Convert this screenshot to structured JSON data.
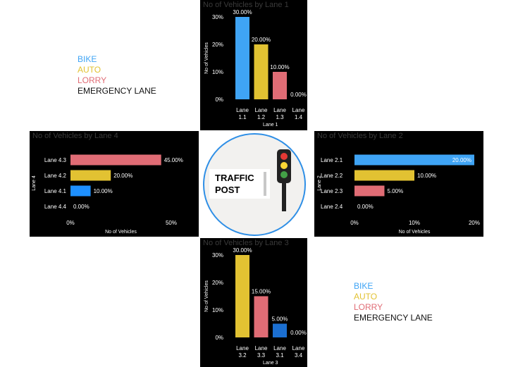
{
  "colors": {
    "bike": "#3fa4f5",
    "auto": "#e2c232",
    "lorry": "#e06c75",
    "lane31": "#1b6fd1",
    "lane41": "#1e90ff",
    "panel_bg": "#000000",
    "accent": "#2f8fe6"
  },
  "legend_top": {
    "items": [
      "BIKE",
      "AUTO",
      "LORRY",
      "EMERGENCY LANE"
    ]
  },
  "legend_bottom": {
    "items": [
      "BIKE",
      "AUTO",
      "LORRY",
      "EMERGENCY LANE"
    ]
  },
  "traffic_post": {
    "line1": "TRAFFIC",
    "line2": "POST"
  },
  "chart_data": [
    {
      "id": "lane1",
      "type": "bar",
      "title": "No of Vehicles by Lane 1",
      "categories": [
        "Lane 1.1",
        "Lane 1.2",
        "Lane 1.3",
        "Lane 1.4"
      ],
      "values": [
        30,
        20,
        10,
        0
      ],
      "labels": [
        "30.00%",
        "20.00%",
        "10.00%",
        "0.00%"
      ],
      "colors": [
        "#3fa4f5",
        "#e2c232",
        "#e06c75",
        "#000000"
      ],
      "xlabel": "Lane 1",
      "ylabel": "No of Vehicles",
      "ylim": [
        0,
        30
      ],
      "ticks": [
        "0%",
        "10%",
        "20%",
        "30%"
      ]
    },
    {
      "id": "lane2",
      "type": "bar",
      "orientation": "horizontal",
      "title": "No of Vehicles by Lane 2",
      "categories": [
        "Lane 2.1",
        "Lane 2.2",
        "Lane 2.3",
        "Lane 2.4"
      ],
      "values": [
        20,
        10,
        5,
        0
      ],
      "labels": [
        "20.00%",
        "10.00%",
        "5.00%",
        "0.00%"
      ],
      "colors": [
        "#3fa4f5",
        "#e2c232",
        "#e06c75",
        "#000000"
      ],
      "xlabel": "No of Vehicles",
      "ylabel": "Lane 2",
      "xlim": [
        0,
        20
      ],
      "ticks": [
        "0%",
        "10%",
        "20%"
      ]
    },
    {
      "id": "lane3",
      "type": "bar",
      "title": "No of Vehicles by Lane 3",
      "categories": [
        "Lane 3.2",
        "Lane 3.3",
        "Lane 3.1",
        "Lane 3.4"
      ],
      "values": [
        30,
        15,
        5,
        0
      ],
      "labels": [
        "30.00%",
        "15.00%",
        "5.00%",
        "0.00%"
      ],
      "colors": [
        "#e2c232",
        "#e06c75",
        "#1b6fd1",
        "#000000"
      ],
      "xlabel": "Lane 3",
      "ylabel": "No of Vehicles",
      "ylim": [
        0,
        30
      ],
      "ticks": [
        "0%",
        "10%",
        "20%",
        "30%"
      ]
    },
    {
      "id": "lane4",
      "type": "bar",
      "orientation": "horizontal",
      "title": "No of Vehicles by Lane 4",
      "categories": [
        "Lane 4.3",
        "Lane 4.2",
        "Lane 4.1",
        "Lane 4.4"
      ],
      "values": [
        45,
        20,
        10,
        0
      ],
      "labels": [
        "45.00%",
        "20.00%",
        "10.00%",
        "0.00%"
      ],
      "colors": [
        "#e06c75",
        "#e2c232",
        "#1e90ff",
        "#000000"
      ],
      "xlabel": "No of Vehicles",
      "ylabel": "Lane 4",
      "xlim": [
        0,
        50
      ],
      "ticks": [
        "0%",
        "50%"
      ]
    }
  ]
}
